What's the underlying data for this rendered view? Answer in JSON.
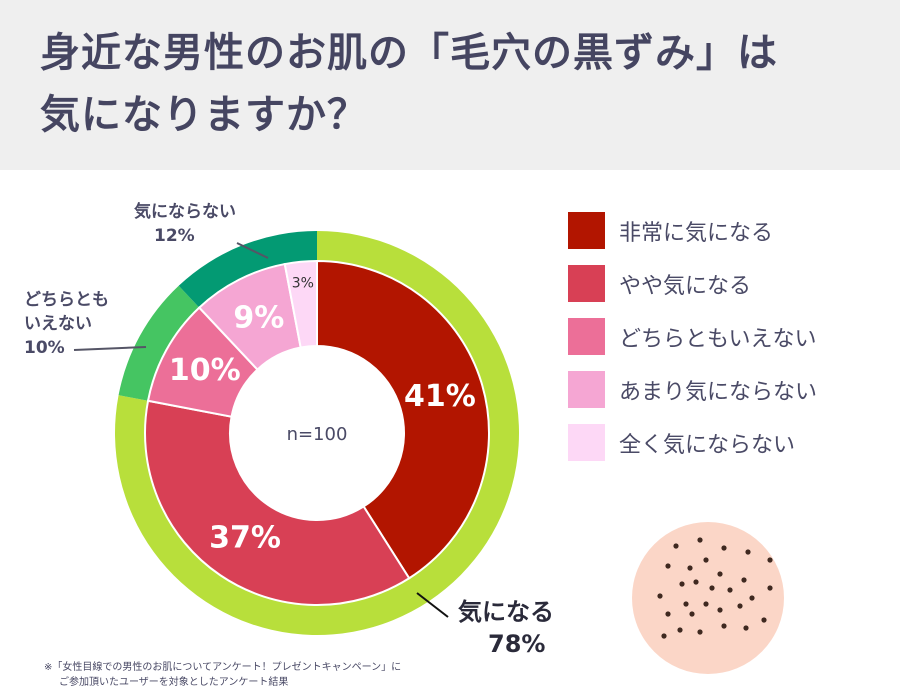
{
  "title": {
    "line1": "身近な男性のお肌の「毛穴の黒ずみ」は",
    "line2": "気になりますか？"
  },
  "colors": {
    "very_concerned": "#b21500",
    "somewhat_concerned": "#d84055",
    "neutral": "#ec6f98",
    "not_very": "#f5a6d3",
    "not_at_all": "#fdd8f6",
    "outer_concerned": "#b8df3b",
    "outer_neutral": "#45c562",
    "outer_not": "#039a73",
    "skin": "#fbd6c7",
    "pore": "#3f2920"
  },
  "chart_data": {
    "type": "pie",
    "center_label": "n=100",
    "inner": [
      {
        "name": "非常に気になる",
        "value": 41,
        "label": "41%"
      },
      {
        "name": "やや気になる",
        "value": 37,
        "label": "37%"
      },
      {
        "name": "どちらともいえない",
        "value": 10,
        "label": "10%"
      },
      {
        "name": "あまり気にならない",
        "value": 9,
        "label": "9%"
      },
      {
        "name": "全く気にならない",
        "value": 3,
        "label": "3%"
      }
    ],
    "outer": [
      {
        "name": "気になる",
        "value": 78,
        "label": "78%"
      },
      {
        "name": "どちらともいえない",
        "value": 10,
        "label": "10%"
      },
      {
        "name": "気にならない",
        "value": 12,
        "label": "12%"
      }
    ]
  },
  "legend": [
    "非常に気になる",
    "やや気になる",
    "どちらともいえない",
    "あまり気にならない",
    "全く気にならない"
  ],
  "outer_labels": {
    "not_concerned": {
      "name": "気にならない",
      "value": "12%"
    },
    "neutral": {
      "name_line1": "どちらとも",
      "name_line2": "いえない",
      "value": "10%"
    },
    "concerned": {
      "name": "気になる",
      "value": "78%"
    }
  },
  "footnote": {
    "line1": "※「女性目線での男性のお肌についてアンケート！プレゼントキャンペーン」に",
    "line2": "ご参加頂いたユーザーを対象としたアンケート結果"
  }
}
